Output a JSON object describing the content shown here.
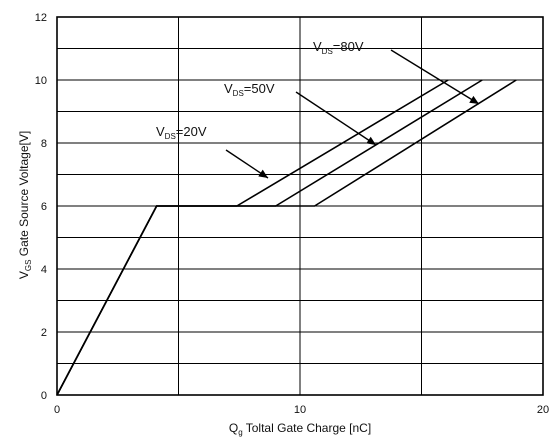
{
  "chart_data": {
    "type": "line",
    "xlabel": "Q",
    "xlabel_sub": "g",
    "xlabel_rest": " Toltal Gate Charge [nC]",
    "ylabel": "V",
    "ylabel_sub": "GS",
    "ylabel_rest": " Gate Source Voltage[V]",
    "xlim": [
      0,
      20
    ],
    "ylim": [
      0,
      12
    ],
    "xticks": [
      0,
      10,
      20
    ],
    "yticks": [
      0,
      2,
      4,
      6,
      8,
      10,
      12
    ],
    "grid": true,
    "series": [
      {
        "name": "VDS=20V",
        "label_main": "V",
        "label_sub": "DS",
        "label_rest": "=20V",
        "x": [
          0,
          4.1,
          7.4,
          16.1
        ],
        "y": [
          0,
          6,
          6,
          10
        ]
      },
      {
        "name": "VDS=50V",
        "label_main": "V",
        "label_sub": "DS",
        "label_rest": "=50V",
        "x": [
          0,
          4.1,
          9.0,
          17.5
        ],
        "y": [
          0,
          6,
          6,
          10
        ]
      },
      {
        "name": "VDS=80V",
        "label_main": "V",
        "label_sub": "DS",
        "label_rest": "=80V",
        "x": [
          0,
          4.1,
          10.6,
          18.9
        ],
        "y": [
          0,
          6,
          6,
          10
        ]
      }
    ]
  }
}
